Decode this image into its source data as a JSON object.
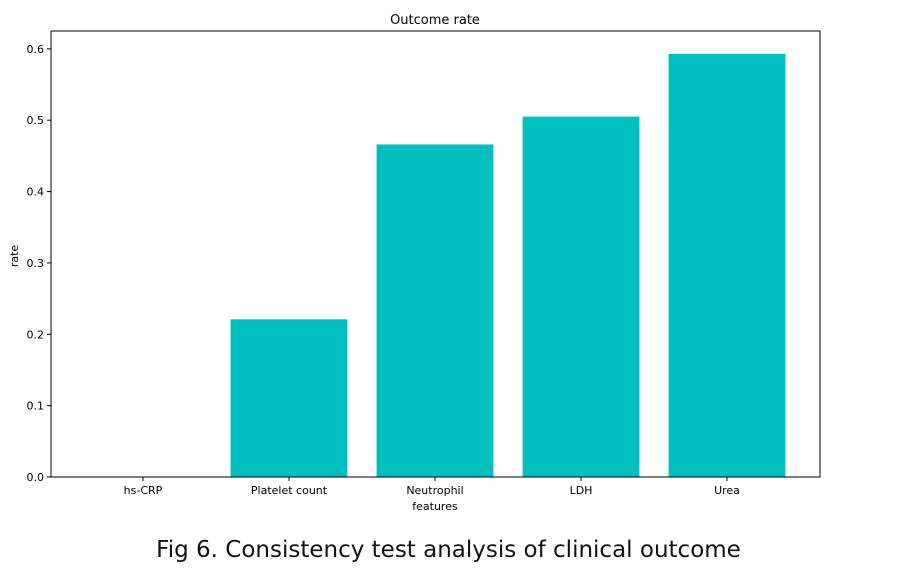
{
  "chart_data": {
    "type": "bar",
    "title": "Outcome rate",
    "xlabel": "features",
    "ylabel": "rate",
    "categories": [
      "hs-CRP",
      "Platelet count",
      "Neutrophil",
      "LDH",
      "Urea"
    ],
    "values": [
      0.0,
      0.221,
      0.466,
      0.505,
      0.593
    ],
    "ylim": [
      0.0,
      0.625
    ],
    "yticks": [
      "0.0",
      "0.1",
      "0.2",
      "0.3",
      "0.4",
      "0.5",
      "0.6"
    ],
    "bar_color": "#00bfbf",
    "grid": false
  },
  "caption": "Fig 6. Consistency test analysis of clinical outcome"
}
